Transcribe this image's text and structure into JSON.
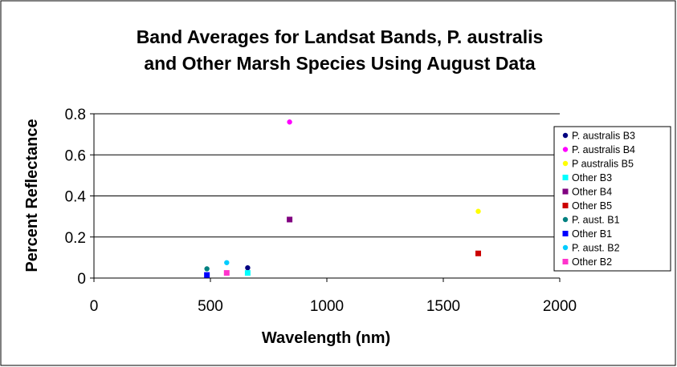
{
  "chart_data": {
    "type": "scatter",
    "title": [
      "Band Averages for Landsat Bands, P. australis",
      "and Other Marsh Species Using August Data"
    ],
    "xlabel": "Wavelength (nm)",
    "ylabel": "Percent Reflectance",
    "xlim": [
      0,
      2000
    ],
    "ylim": [
      0,
      0.8
    ],
    "xticks": [
      "0",
      "500",
      "1000",
      "1500",
      "2000"
    ],
    "yticks": [
      "0",
      "0.2",
      "0.4",
      "0.6",
      "0.8"
    ],
    "grid": "horizontal",
    "legend_position": "right",
    "series": [
      {
        "name": "P. australis B3",
        "color": "#000080",
        "marker": "circle",
        "x": [
          660
        ],
        "y": [
          0.05
        ]
      },
      {
        "name": "P. australis B4",
        "color": "#ff00ff",
        "marker": "circle",
        "x": [
          840
        ],
        "y": [
          0.76
        ]
      },
      {
        "name": "P australis B5",
        "color": "#ffff00",
        "marker": "circle",
        "x": [
          1650
        ],
        "y": [
          0.325
        ]
      },
      {
        "name": "Other B3",
        "color": "#00ffff",
        "marker": "square",
        "x": [
          660
        ],
        "y": [
          0.025
        ]
      },
      {
        "name": "Other B4",
        "color": "#800080",
        "marker": "square",
        "x": [
          840
        ],
        "y": [
          0.285
        ]
      },
      {
        "name": "Other B5",
        "color": "#cc0000",
        "marker": "square",
        "x": [
          1650
        ],
        "y": [
          0.12
        ]
      },
      {
        "name": "P. aust. B1",
        "color": "#008080",
        "marker": "circle",
        "x": [
          485
        ],
        "y": [
          0.045
        ]
      },
      {
        "name": "Other B1",
        "color": "#0000ff",
        "marker": "square",
        "x": [
          485
        ],
        "y": [
          0.015
        ]
      },
      {
        "name": "P. aust. B2",
        "color": "#00ccff",
        "marker": "circle",
        "x": [
          570
        ],
        "y": [
          0.075
        ]
      },
      {
        "name": "Other B2",
        "color": "#ff33cc",
        "marker": "square",
        "x": [
          570
        ],
        "y": [
          0.025
        ]
      }
    ]
  }
}
